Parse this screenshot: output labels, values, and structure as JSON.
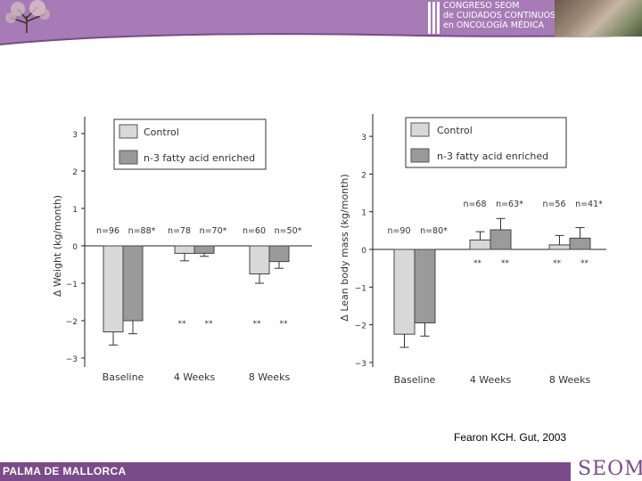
{
  "header": {
    "congress_lines": [
      "CONGRESO SEOM",
      "de CUIDADOS CONTINUOS",
      "en ONCOLOGÍA MÉDICA"
    ],
    "header_color": "#a77bb5"
  },
  "legend": {
    "control_label": "Control",
    "enriched_label": "n-3 fatty acid enriched",
    "control_color": "#d8d8d8",
    "enriched_color": "#9a9a9a"
  },
  "chart_data": [
    {
      "type": "bar",
      "ylabel": "Δ Weight (kg/month)",
      "ylim": [
        -3,
        3
      ],
      "yticks": [
        "3",
        "2",
        "1",
        "0",
        "−1",
        "−2",
        "−3"
      ],
      "categories": [
        "Baseline",
        "4 Weeks",
        "8 Weeks"
      ],
      "series": [
        {
          "name": "Control",
          "values": [
            -2.3,
            -0.2,
            -0.75
          ],
          "errors": [
            0.35,
            0.2,
            0.25
          ]
        },
        {
          "name": "n-3 fatty acid enriched",
          "values": [
            -2.0,
            -0.2,
            -0.42
          ],
          "errors": [
            0.35,
            0.08,
            0.18
          ]
        }
      ],
      "n_labels": [
        [
          "n=96",
          "n=88*"
        ],
        [
          "n=78",
          "n=70*"
        ],
        [
          "n=60",
          "n=50*"
        ]
      ],
      "significance": [
        [
          "",
          ""
        ],
        [
          "**",
          "**"
        ],
        [
          "**",
          "**"
        ]
      ]
    },
    {
      "type": "bar",
      "ylabel": "Δ Lean body mass (kg/month)",
      "ylim": [
        -3,
        3
      ],
      "yticks": [
        "3",
        "2",
        "1",
        "0",
        "−1",
        "−2",
        "−3"
      ],
      "categories": [
        "Baseline",
        "4 Weeks",
        "8 Weeks"
      ],
      "series": [
        {
          "name": "Control",
          "values": [
            -2.25,
            0.25,
            0.12
          ],
          "errors": [
            0.35,
            0.22,
            0.25
          ]
        },
        {
          "name": "n-3 fatty acid enriched",
          "values": [
            -1.95,
            0.52,
            0.3
          ],
          "errors": [
            0.35,
            0.3,
            0.28
          ]
        }
      ],
      "n_labels": [
        [
          "n=90",
          "n=80*"
        ],
        [
          "n=68",
          "n=63*"
        ],
        [
          "n=56",
          "n=41*"
        ]
      ],
      "significance": [
        [
          "",
          ""
        ],
        [
          "**",
          "**"
        ],
        [
          "**",
          "**"
        ]
      ]
    }
  ],
  "citation": "Fearon KCH. Gut, 2003",
  "footer": {
    "city": "PALMA DE MALLORCA",
    "logo_text": "SEOM",
    "footer_color": "#7a4b89"
  }
}
